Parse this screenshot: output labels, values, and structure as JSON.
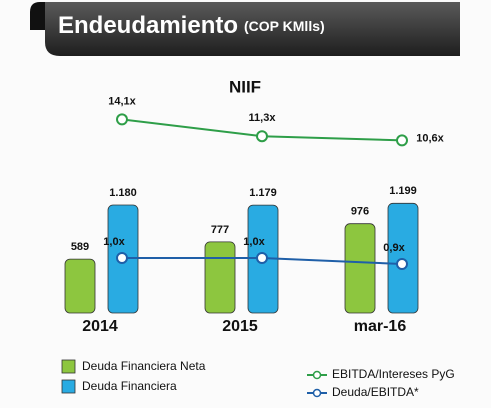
{
  "chart_data": {
    "type": "bar",
    "title": "Endeudamiento",
    "title_unit": "(COP KMlls)",
    "subtitle": "NIIF",
    "categories": [
      "2014",
      "2015",
      "mar-16"
    ],
    "series": [
      {
        "name": "Deuda Financiera Neta",
        "color": "#8dc63f",
        "values": [
          589,
          777,
          976
        ]
      },
      {
        "name": "Deuda Financiera",
        "color": "#29abe2",
        "values": [
          1180,
          1179,
          1199
        ],
        "value_labels": [
          "1.180",
          "1.179",
          "1.199"
        ]
      },
      {
        "name": "EBITDA/Intereses PyG",
        "type": "line",
        "color": "#2e9e48",
        "values": [
          14.1,
          11.3,
          10.6
        ],
        "value_labels": [
          "14,1x",
          "11,3x",
          "10,6x"
        ]
      },
      {
        "name": "Deuda/EBITDA*",
        "type": "line",
        "color": "#1f5fa8",
        "values": [
          1.0,
          1.0,
          0.9
        ],
        "value_labels": [
          "1,0x",
          "1,0x",
          "0,9x"
        ]
      }
    ]
  }
}
